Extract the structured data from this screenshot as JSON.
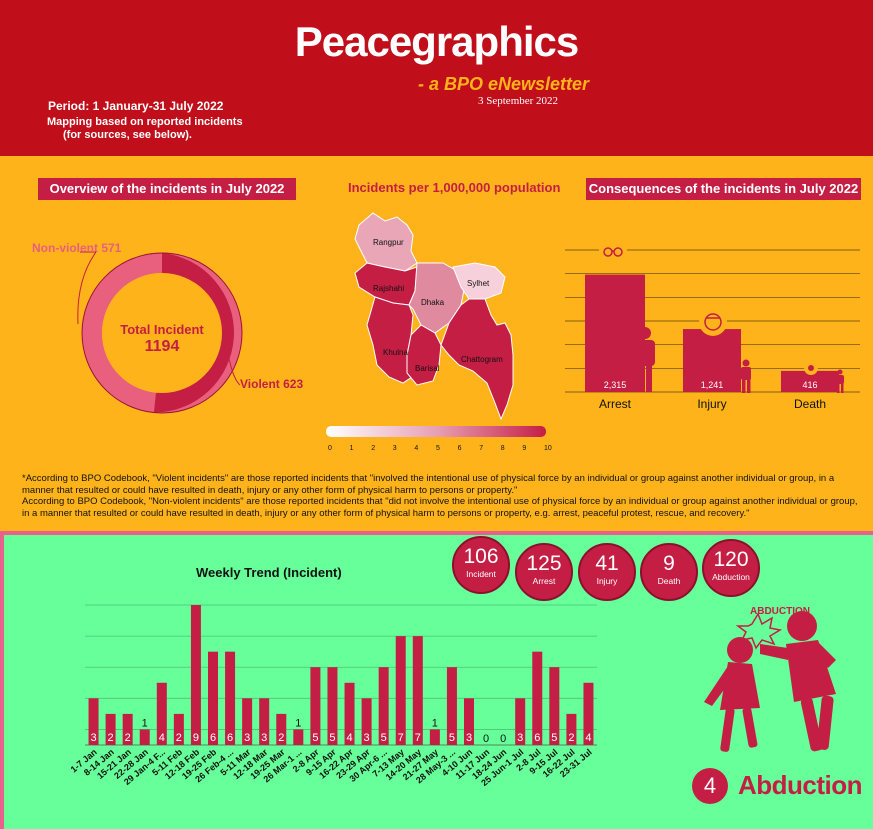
{
  "header": {
    "title": "Peacegraphics",
    "subtitle": "- a BPO eNewsletter",
    "date": "3 September 2022",
    "period": "Period: 1 January-31 July 2022",
    "mapping_line1": "Mapping based on reported incidents",
    "mapping_line2": "(for sources, see below)."
  },
  "overview": {
    "banner": "Overview of the incidents in July 2022",
    "nonviolent_label": "Non-violent 571",
    "violent_label": "Violent 623",
    "total_label": "Total Incident",
    "total_value": "1194"
  },
  "map": {
    "title": "Incidents per 1,000,000 population",
    "regions": [
      "Rangpur",
      "Rajshahi",
      "Dhaka",
      "Sylhet",
      "Khulna",
      "Barisal",
      "Chattogram"
    ],
    "scale_labels": [
      "0",
      "1",
      "2",
      "3",
      "4",
      "5",
      "6",
      "7",
      "8",
      "9",
      "10"
    ]
  },
  "consequences": {
    "banner": "Consequences of the incidents in July 2022",
    "chart_data": {
      "type": "bar",
      "categories": [
        "Arrest",
        "Injury",
        "Death"
      ],
      "values": [
        2315,
        1241,
        416
      ],
      "value_labels": [
        "2,315",
        "1,241",
        "416"
      ],
      "ylim": [
        0,
        2800
      ]
    }
  },
  "note": {
    "line1": "*According to BPO Codebook, \"Violent incidents\" are those reported incidents that \"involved the intentional use of physical force by an individual or group against another individual or group, in a manner that resulted or could have resulted in death, injury or any other form of physical harm to persons or property.\"",
    "line2": "According to BPO Codebook, \"Non-violent incidents\" are those reported incidents that \"did not involve the intentional use of physical force by an individual or group against another individual or group, in a manner that resulted or could have resulted in death, injury or any other form of physical harm to persons or property, e.g. arrest, peaceful protest, rescue, and recovery.\""
  },
  "weekly": {
    "title": "Weekly Trend (Incident)",
    "chart_data": {
      "type": "bar",
      "categories": [
        "1-7 Jan",
        "8-14 Jan",
        "15-21 Jan",
        "22-28 Jan",
        "29 Jan-4 F...",
        "5-11 Feb",
        "12-18 Feb",
        "19-25 Feb",
        "26 Feb-4 ...",
        "5-11 Mar",
        "12-18 Mar",
        "19-25 Mar",
        "26 Mar-1 ...",
        "2-8 Apr",
        "9-15 Apr",
        "16-22 Apr",
        "23-29 Apr",
        "30 Apr-6 ...",
        "7-13 May",
        "14-20 May",
        "21-27 May",
        "28 May-3 ...",
        "4-10 Jun",
        "11-17 Jun",
        "18-24 Jun",
        "25 Jun-1 Jul",
        "2-8 Jul",
        "9-15 Jul",
        "16-22 Jul",
        "23-31 Jul"
      ],
      "values": [
        3,
        2,
        2,
        1,
        4,
        2,
        9,
        6,
        6,
        3,
        3,
        2,
        1,
        5,
        5,
        4,
        3,
        5,
        7,
        7,
        1,
        5,
        3,
        0,
        0,
        3,
        6,
        5,
        2,
        4
      ],
      "ylim": [
        0,
        9
      ]
    }
  },
  "stats": [
    {
      "value": "106",
      "label": "Incident"
    },
    {
      "value": "125",
      "label": "Arrest"
    },
    {
      "value": "41",
      "label": "Injury"
    },
    {
      "value": "9",
      "label": "Death"
    },
    {
      "value": "120",
      "label": "Abduction"
    }
  ],
  "abduction": {
    "icon_label": "ABDUCTION",
    "count": "4",
    "label": "Abduction"
  },
  "colors": {
    "header_red": "#C00E1A",
    "accent": "#C51E45",
    "yellow": "#FFB31A",
    "green": "#66FF99",
    "pink": "#E8618C"
  }
}
